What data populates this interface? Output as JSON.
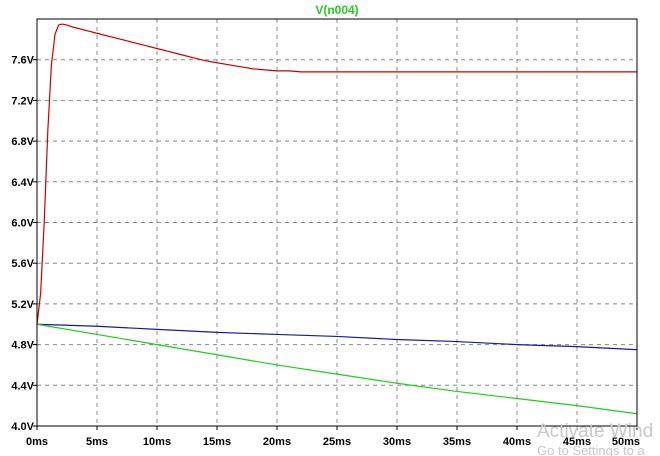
{
  "chart_data": {
    "type": "line",
    "title": "V(n004)",
    "title_color": "#22cc22",
    "xlim": [
      0,
      50
    ],
    "ylim": [
      4.0,
      8.0
    ],
    "x_ticks": [
      0,
      5,
      10,
      15,
      20,
      25,
      30,
      35,
      40,
      45,
      50
    ],
    "x_tick_labels": [
      "0ms",
      "5ms",
      "10ms",
      "15ms",
      "20ms",
      "25ms",
      "30ms",
      "35ms",
      "40ms",
      "45ms",
      "50ms"
    ],
    "y_ticks": [
      4.0,
      4.4,
      4.8,
      5.2,
      5.6,
      6.0,
      6.4,
      6.8,
      7.2,
      7.6
    ],
    "y_tick_labels": [
      "4.0V",
      "4.4V",
      "4.8V",
      "5.2V",
      "5.6V",
      "6.0V",
      "6.4V",
      "6.8V",
      "7.2V",
      "7.6V"
    ],
    "grid": true,
    "series": [
      {
        "color": "#cc0000",
        "x": [
          0,
          0.3,
          0.6,
          0.9,
          1.2,
          1.5,
          1.8,
          2.1,
          2.5,
          3,
          4,
          5,
          6,
          7,
          8,
          9,
          10,
          11,
          12,
          13,
          14,
          15,
          16,
          17,
          18,
          19,
          20,
          21,
          22,
          25,
          30,
          35,
          40,
          45,
          50
        ],
        "y": [
          5.0,
          5.3,
          6.0,
          6.9,
          7.55,
          7.85,
          7.94,
          7.95,
          7.94,
          7.92,
          7.89,
          7.86,
          7.83,
          7.8,
          7.77,
          7.74,
          7.71,
          7.68,
          7.65,
          7.62,
          7.59,
          7.57,
          7.55,
          7.53,
          7.51,
          7.5,
          7.49,
          7.49,
          7.48,
          7.48,
          7.48,
          7.48,
          7.48,
          7.48,
          7.48
        ]
      },
      {
        "color": "#1a1a9a",
        "x": [
          0,
          5,
          10,
          15,
          20,
          25,
          30,
          35,
          40,
          45,
          50
        ],
        "y": [
          5.0,
          4.98,
          4.95,
          4.92,
          4.9,
          4.88,
          4.85,
          4.83,
          4.8,
          4.78,
          4.75
        ]
      },
      {
        "color": "#22cc22",
        "x": [
          0,
          5,
          10,
          15,
          20,
          25,
          30,
          35,
          40,
          45,
          50
        ],
        "y": [
          5.0,
          4.9,
          4.8,
          4.7,
          4.6,
          4.51,
          4.42,
          4.34,
          4.27,
          4.2,
          4.12
        ]
      }
    ]
  },
  "watermark": {
    "line1": "Activate Wind",
    "line2": "Go to Settings to a"
  }
}
